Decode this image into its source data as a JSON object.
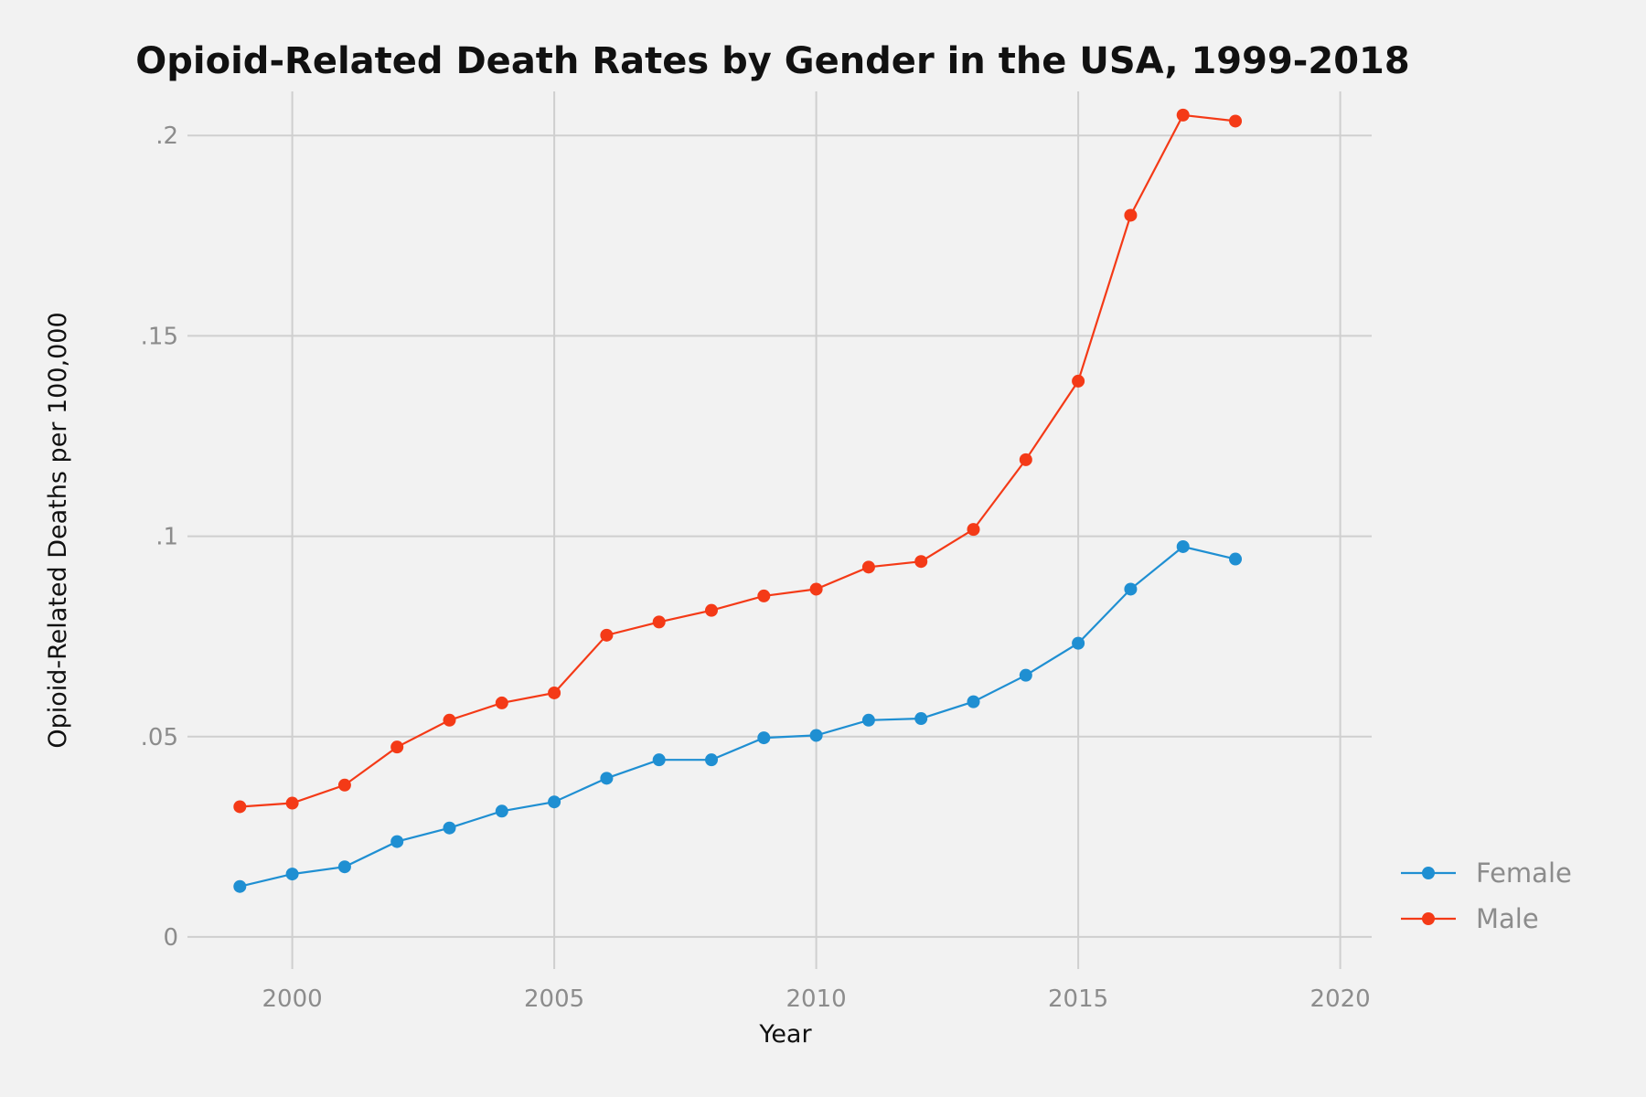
{
  "chart_data": {
    "type": "line",
    "title": "Opioid-Related Death Rates by Gender in the USA, 1999-2018",
    "xlabel": "Year",
    "ylabel": "Opioid-Related Deaths per 100,000",
    "xlim": [
      1998,
      2020.6
    ],
    "ylim": [
      -0.008,
      0.211
    ],
    "x_ticks": [
      2000,
      2005,
      2010,
      2015,
      2020
    ],
    "x_tick_labels": [
      "2000",
      "2005",
      "2010",
      "2015",
      "2020"
    ],
    "y_ticks": [
      0,
      0.05,
      0.1,
      0.15,
      0.2
    ],
    "y_tick_labels": [
      "0",
      ".05",
      ".1",
      ".15",
      ".2"
    ],
    "grid": true,
    "legend_position": "right",
    "x": [
      1999,
      2000,
      2001,
      2002,
      2003,
      2004,
      2005,
      2006,
      2007,
      2008,
      2009,
      2010,
      2011,
      2012,
      2013,
      2014,
      2015,
      2016,
      2017,
      2018
    ],
    "series": [
      {
        "name": "Female",
        "color": "#1f8fd2",
        "values": [
          0.0126,
          0.0157,
          0.0175,
          0.0238,
          0.0272,
          0.0314,
          0.0337,
          0.0396,
          0.0442,
          0.0442,
          0.0497,
          0.0503,
          0.0541,
          0.0545,
          0.0587,
          0.0653,
          0.0733,
          0.0868,
          0.0974,
          0.0943
        ]
      },
      {
        "name": "Male",
        "color": "#f43a17",
        "values": [
          0.0325,
          0.0334,
          0.0379,
          0.0474,
          0.0541,
          0.0584,
          0.0609,
          0.0753,
          0.0786,
          0.0815,
          0.0851,
          0.0868,
          0.0923,
          0.0937,
          0.1017,
          0.1191,
          0.1387,
          0.1801,
          0.2051,
          0.2036
        ]
      }
    ]
  }
}
